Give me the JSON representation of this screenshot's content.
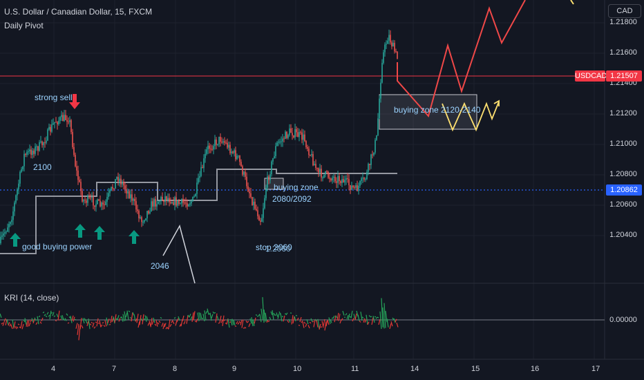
{
  "header": {
    "symbol_line": "U.S. Dollar / Canadian Dollar, 15, FXCM",
    "indicator_1": "Daily Pivot",
    "indicator_2": "KRI (14, close)"
  },
  "price_axis": {
    "currency": "CAD",
    "labels": [
      "1.21800",
      "1.21600",
      "1.21400",
      "1.21200",
      "1.21000",
      "1.20800",
      "1.20600",
      "1.20400"
    ],
    "kri_zero_label": "0.00000"
  },
  "price_tags": {
    "symbol": "USDCAD",
    "last_price": "1.21507",
    "crosshair_price": "1.20862"
  },
  "time_axis": [
    "4",
    "7",
    "8",
    "9",
    "10",
    "11",
    "14",
    "15",
    "16",
    "17"
  ],
  "annotations": {
    "strong_sell": "strong sell",
    "level_2100": "2100",
    "good_buying_power": "good buying power",
    "level_2046": "2046",
    "buying_zone_1_line1": "buying zone",
    "buying_zone_1_line2": "2080/2092",
    "stop": "stop 2060",
    "stop_overlap": "1.2060",
    "buying_zone_2": "buying zone 2120-2140"
  },
  "colors": {
    "background": "#131722",
    "bull": "#26a69a",
    "bear": "#ef5350",
    "pivot": "#9598a1",
    "projection_red": "#f04848",
    "projection_yellow": "#ffe070",
    "annotation_text": "#9cd3ff",
    "arrow_up": "#089981",
    "arrow_down": "#f23645",
    "last_price_tag": "#f23645",
    "crosshair_tag": "#2962ff"
  },
  "icons": [
    "arrow-up-icon",
    "arrow-down-icon"
  ]
}
